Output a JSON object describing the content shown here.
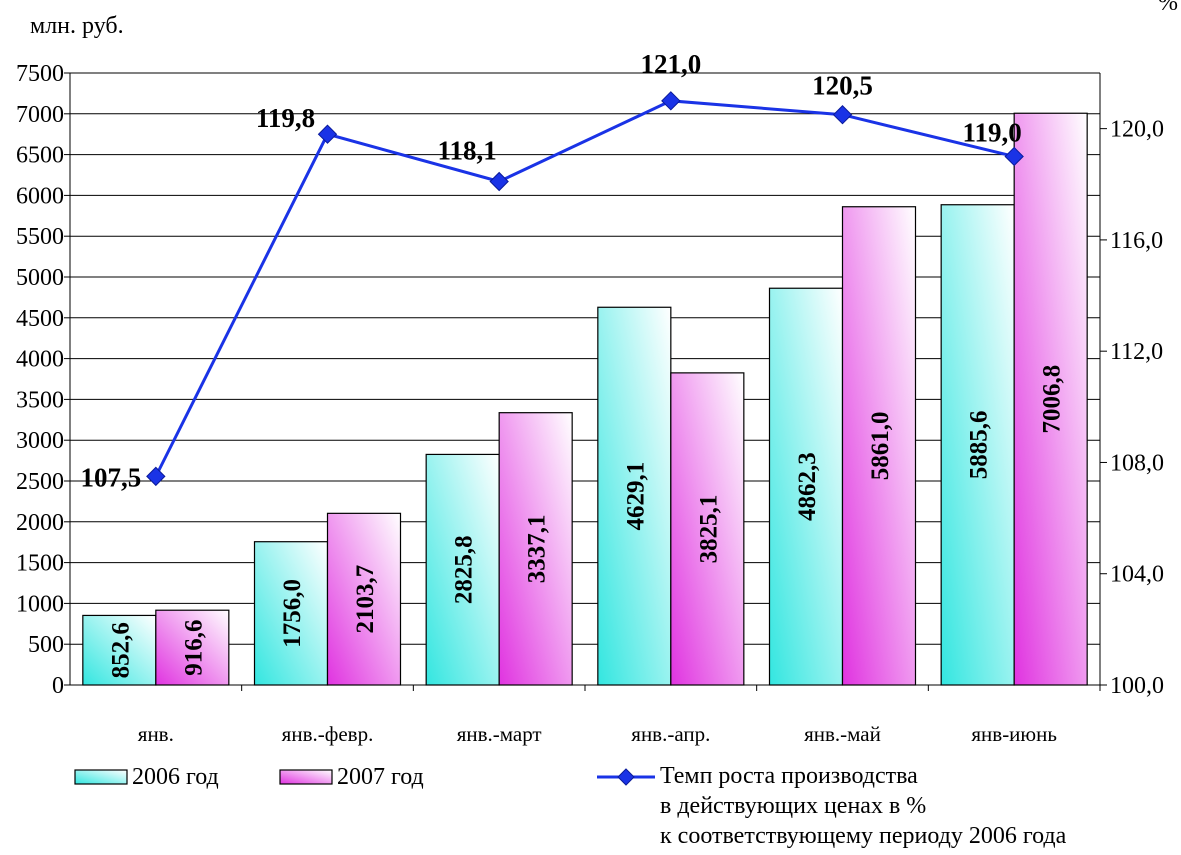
{
  "chart_data": {
    "type": "bar",
    "categories": [
      "янв.",
      "янв.-февр.",
      "янв.-март",
      "янв.-апр.",
      "янв.-май",
      "янв-июнь"
    ],
    "series": [
      {
        "name": "2006 год",
        "type": "bar",
        "axis": "left",
        "values": [
          852.6,
          1756.0,
          2825.8,
          4629.1,
          4862.3,
          5885.6
        ],
        "labels": [
          "852,6",
          "1756,0",
          "2825,8",
          "4629,1",
          "4862,3",
          "5885,6"
        ],
        "color_top": "#ffffff",
        "color_bottom": "#33e6e0"
      },
      {
        "name": "2007 год",
        "type": "bar",
        "axis": "left",
        "values": [
          916.6,
          2103.7,
          3337.1,
          3825.1,
          5861.0,
          7006.8
        ],
        "labels": [
          "916,6",
          "2103,7",
          "3337,1",
          "3825,1",
          "5861,0",
          "7006,8"
        ],
        "color_top": "#ffffff",
        "color_bottom": "#e033e0"
      },
      {
        "name": "Темп роста производства в действующих ценах в % к соответствующему периоду 2006 года",
        "type": "line",
        "axis": "right",
        "values": [
          107.5,
          119.8,
          118.1,
          121.0,
          120.5,
          119.0
        ],
        "labels": [
          "107,5",
          "119,8",
          "118,1",
          "121,0",
          "120,5",
          "119,0"
        ],
        "color": "#1a33e6"
      }
    ],
    "ylabel_left": "млн. руб.",
    "ylabel_right": "%",
    "ylim_left": [
      0,
      7500
    ],
    "yticks_left": [
      "0",
      "500",
      "1000",
      "1500",
      "2000",
      "2500",
      "3000",
      "3500",
      "4000",
      "4500",
      "5000",
      "5500",
      "6000",
      "6500",
      "7000",
      "7500"
    ],
    "ylim_right": [
      100,
      122
    ],
    "yticks_right": [
      "100,0",
      "104,0",
      "108,0",
      "112,0",
      "116,0",
      "120,0"
    ],
    "grid": true,
    "legend": {
      "position": "bottom",
      "items": [
        "2006 год",
        "2007 год"
      ],
      "line_item_lines": [
        "Темп роста производства",
        "в действующих ценах в %",
        "к соответствующему периоду 2006 года"
      ]
    }
  }
}
